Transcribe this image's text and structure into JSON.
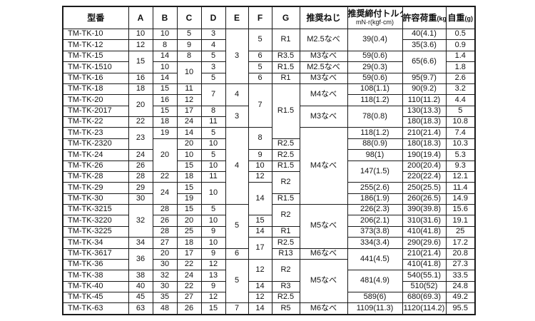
{
  "table": {
    "headers": [
      {
        "label": "型番"
      },
      {
        "label": "A"
      },
      {
        "label": "B"
      },
      {
        "label": "C"
      },
      {
        "label": "D"
      },
      {
        "label": "E"
      },
      {
        "label": "F"
      },
      {
        "label": "G"
      },
      {
        "label": "推奨ねじ"
      },
      {
        "label": "推奨締付トルク",
        "sub": "mN·r(kgf·cm)"
      },
      {
        "label": "許容荷重",
        "unit": "(kgf)"
      },
      {
        "label": "自重",
        "unit": "(g)"
      }
    ],
    "rows": [
      {
        "model": "TM-TK-10",
        "cells": [
          [
            "10"
          ],
          [
            "10"
          ],
          [
            "5"
          ],
          [
            "3"
          ],
          [
            "3",
            5
          ],
          [
            "5",
            2
          ],
          [
            "R1",
            2
          ],
          [
            "M2.5なべ",
            2
          ],
          [
            "39(0.4)",
            2
          ],
          [
            "40(4.1)"
          ],
          [
            "0.5"
          ]
        ]
      },
      {
        "model": "TM-TK-12",
        "cells": [
          [
            "12"
          ],
          [
            "8"
          ],
          [
            "9"
          ],
          [
            "4"
          ],
          null,
          null,
          null,
          null,
          null,
          [
            "35(3.6)"
          ],
          [
            "0.9"
          ]
        ]
      },
      {
        "model": "TM-TK-15",
        "cells": [
          [
            "15",
            2
          ],
          [
            "14"
          ],
          [
            "8"
          ],
          [
            "5"
          ],
          null,
          [
            "6"
          ],
          [
            "R3.5"
          ],
          [
            "M3なべ"
          ],
          [
            "59(0.6)"
          ],
          [
            "65(6.6)",
            2
          ],
          [
            "1.4"
          ]
        ]
      },
      {
        "model": "TM-TK-1510",
        "cells": [
          null,
          [
            "10"
          ],
          [
            "10",
            2
          ],
          [
            "3"
          ],
          null,
          [
            "5"
          ],
          [
            "R1.5"
          ],
          [
            "M2.5なべ"
          ],
          [
            "29(0.3)"
          ],
          null,
          [
            "1.8"
          ]
        ]
      },
      {
        "model": "TM-TK-16",
        "cells": [
          [
            "16"
          ],
          [
            "14"
          ],
          null,
          [
            "5"
          ],
          null,
          [
            "6"
          ],
          [
            "R1"
          ],
          [
            "M3なべ"
          ],
          [
            "59(0.6)"
          ],
          [
            "95(9.7)"
          ],
          [
            "2.6"
          ]
        ]
      },
      {
        "model": "TM-TK-18",
        "cells": [
          [
            "18"
          ],
          [
            "15"
          ],
          [
            "11"
          ],
          [
            "7",
            2
          ],
          [
            "4",
            2
          ],
          [
            "7",
            4
          ],
          [
            "R1.5",
            5
          ],
          [
            "M4なべ",
            2
          ],
          [
            "108(1.1)"
          ],
          [
            "90(9.2)"
          ],
          [
            "3.2"
          ]
        ]
      },
      {
        "model": "TM-TK-20",
        "cells": [
          [
            "20",
            2
          ],
          [
            "16"
          ],
          [
            "12"
          ],
          null,
          null,
          null,
          null,
          null,
          [
            "118(1.2)"
          ],
          [
            "110(11.2)"
          ],
          [
            "4.4"
          ]
        ]
      },
      {
        "model": "TM-TK-2017",
        "cells": [
          null,
          [
            "15"
          ],
          [
            "17"
          ],
          [
            "8"
          ],
          [
            "3",
            2
          ],
          null,
          null,
          [
            "M3なべ",
            2
          ],
          [
            "78(0.8)",
            2
          ],
          [
            "130(13.3)"
          ],
          [
            "5"
          ]
        ]
      },
      {
        "model": "TM-TK-22",
        "cells": [
          [
            "22"
          ],
          [
            "18"
          ],
          [
            "24"
          ],
          [
            "11"
          ],
          null,
          null,
          null,
          null,
          null,
          [
            "180(18.3)"
          ],
          [
            "10.8"
          ]
        ]
      },
      {
        "model": "TM-TK-23",
        "cells": [
          [
            "23",
            2
          ],
          [
            "19"
          ],
          [
            "14"
          ],
          [
            "5"
          ],
          [
            "4",
            7
          ],
          [
            "8",
            2
          ],
          null,
          [
            "M4なべ",
            7
          ],
          [
            "118(1.2)"
          ],
          [
            "210(21.4)"
          ],
          [
            "7.4"
          ]
        ]
      },
      {
        "model": "TM-TK-2320",
        "cells": [
          null,
          [
            "20",
            3
          ],
          [
            "20"
          ],
          [
            "10"
          ],
          null,
          null,
          [
            "R2.5"
          ],
          null,
          [
            "88(0.9)"
          ],
          [
            "180(18.3)"
          ],
          [
            "10.3"
          ]
        ]
      },
      {
        "model": "TM-TK-24",
        "cells": [
          [
            "24"
          ],
          null,
          [
            "10"
          ],
          [
            "5"
          ],
          null,
          [
            "9"
          ],
          [
            "R2.5"
          ],
          null,
          [
            "98(1)"
          ],
          [
            "190(19.4)"
          ],
          [
            "5.3"
          ]
        ]
      },
      {
        "model": "TM-TK-26",
        "cells": [
          [
            "26"
          ],
          null,
          [
            "15"
          ],
          [
            "10"
          ],
          null,
          [
            "10"
          ],
          [
            "R1.5"
          ],
          null,
          [
            "147(1.5)",
            2
          ],
          [
            "200(20.4)"
          ],
          [
            "9.3"
          ]
        ]
      },
      {
        "model": "TM-TK-28",
        "cells": [
          [
            "28"
          ],
          [
            "22"
          ],
          [
            "18"
          ],
          [
            "11"
          ],
          null,
          [
            "12"
          ],
          [
            "R2",
            2
          ],
          null,
          null,
          [
            "220(22.4)"
          ],
          [
            "12.1"
          ]
        ]
      },
      {
        "model": "TM-TK-29",
        "cells": [
          [
            "29"
          ],
          [
            "24",
            2
          ],
          [
            "15"
          ],
          [
            "10",
            2
          ],
          null,
          [
            "14",
            3
          ],
          null,
          null,
          [
            "255(2.6)"
          ],
          [
            "250(25.5)"
          ],
          [
            "11.4"
          ]
        ]
      },
      {
        "model": "TM-TK-30",
        "cells": [
          [
            "30"
          ],
          null,
          [
            "19"
          ],
          null,
          null,
          null,
          [
            "R1.5"
          ],
          null,
          [
            "186(1.9)"
          ],
          [
            "260(26.5)"
          ],
          [
            "14.9"
          ]
        ]
      },
      {
        "model": "TM-TK-3215",
        "cells": [
          [
            "32",
            3
          ],
          [
            "28"
          ],
          [
            "15"
          ],
          [
            "5"
          ],
          [
            "5",
            4
          ],
          null,
          [
            "R2",
            2
          ],
          [
            "M5なべ",
            4
          ],
          [
            "226(2.3)"
          ],
          [
            "390(39.8)"
          ],
          [
            "15.6"
          ]
        ]
      },
      {
        "model": "TM-TK-3220",
        "cells": [
          null,
          [
            "26"
          ],
          [
            "20"
          ],
          [
            "10"
          ],
          null,
          [
            "15"
          ],
          null,
          null,
          [
            "206(2.1)"
          ],
          [
            "310(31.6)"
          ],
          [
            "19.1"
          ]
        ]
      },
      {
        "model": "TM-TK-3225",
        "cells": [
          null,
          [
            "28"
          ],
          [
            "25"
          ],
          [
            "9"
          ],
          null,
          [
            "14"
          ],
          [
            "R1"
          ],
          null,
          [
            "373(3.8)"
          ],
          [
            "410(41.8)"
          ],
          [
            "25"
          ]
        ]
      },
      {
        "model": "TM-TK-34",
        "cells": [
          [
            "34"
          ],
          [
            "27"
          ],
          [
            "18"
          ],
          [
            "10"
          ],
          null,
          [
            "17",
            2
          ],
          [
            "R2.5"
          ],
          null,
          [
            "334(3.4)"
          ],
          [
            "290(29.6)"
          ],
          [
            "17.2"
          ]
        ]
      },
      {
        "model": "TM-TK-3617",
        "cells": [
          [
            "36",
            2
          ],
          [
            "20"
          ],
          [
            "17"
          ],
          [
            "9"
          ],
          [
            "6"
          ],
          null,
          [
            "R13"
          ],
          [
            "M6なべ"
          ],
          [
            "441(4.5)",
            2
          ],
          [
            "210(21.4)"
          ],
          [
            "20.8"
          ]
        ]
      },
      {
        "model": "TM-TK-36",
        "cells": [
          null,
          [
            "30"
          ],
          [
            "22"
          ],
          [
            "12"
          ],
          [
            "5",
            4
          ],
          [
            "12",
            2
          ],
          [
            "R2",
            2
          ],
          [
            "M5なべ",
            4
          ],
          null,
          [
            "410(41.8)"
          ],
          [
            "27.3"
          ]
        ]
      },
      {
        "model": "TM-TK-38",
        "cells": [
          [
            "38"
          ],
          [
            "32"
          ],
          [
            "24"
          ],
          [
            "13"
          ],
          null,
          null,
          null,
          null,
          [
            "481(4.9)",
            2
          ],
          [
            "540(55.1)"
          ],
          [
            "33.5"
          ]
        ]
      },
      {
        "model": "TM-TK-40",
        "cells": [
          [
            "40"
          ],
          [
            "30"
          ],
          [
            "22"
          ],
          [
            "9"
          ],
          null,
          [
            "14"
          ],
          [
            "R3"
          ],
          null,
          null,
          [
            "510(52)"
          ],
          [
            "24.8"
          ]
        ]
      },
      {
        "model": "TM-TK-45",
        "cells": [
          [
            "45"
          ],
          [
            "35"
          ],
          [
            "27"
          ],
          [
            "12"
          ],
          null,
          [
            "12"
          ],
          [
            "R2.5"
          ],
          null,
          [
            "589(6)"
          ],
          [
            "680(69.3)"
          ],
          [
            "49.2"
          ]
        ]
      },
      {
        "model": "TM-TK-63",
        "cells": [
          [
            "63"
          ],
          [
            "48"
          ],
          [
            "26"
          ],
          [
            "15"
          ],
          [
            "7"
          ],
          [
            "14"
          ],
          [
            "R5"
          ],
          [
            "M6なべ"
          ],
          [
            "1109(11.3)"
          ],
          [
            "1120(114.2)"
          ],
          [
            "95.5"
          ]
        ]
      }
    ]
  }
}
